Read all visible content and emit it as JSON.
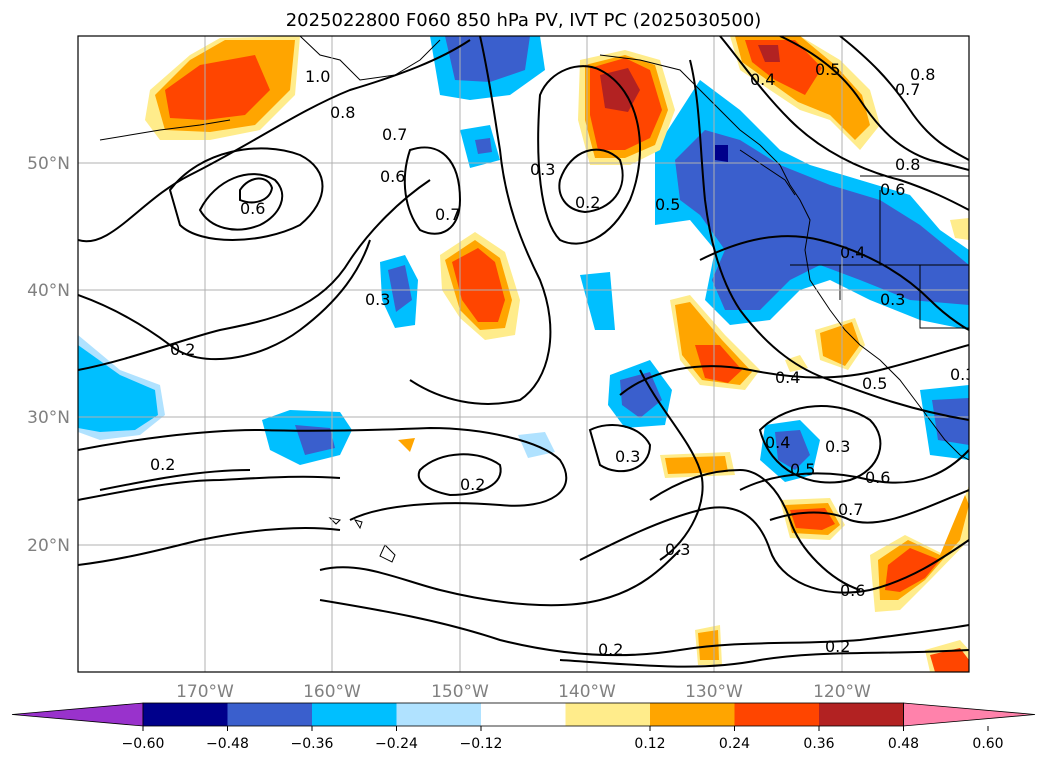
{
  "title": "2025022800 F060 850 hPa PV, IVT PC (2025030500)",
  "lat_labels": [
    "50°N",
    "40°N",
    "30°N",
    "20°N"
  ],
  "lon_labels": [
    "170°W",
    "160°W",
    "150°W",
    "140°W",
    "130°W",
    "120°W"
  ],
  "contour_labels": [
    "1.0",
    "0.8",
    "0.7",
    "0.6",
    "0.6",
    "0.7",
    "0.3",
    "0.3",
    "0.2",
    "0.5",
    "0.4",
    "0.6",
    "0.7",
    "0.8",
    "0.8",
    "0.5",
    "0.4",
    "0.3",
    "0.3",
    "0.2",
    "0.2",
    "0.3",
    "0.2",
    "0.4",
    "0.5",
    "0.4",
    "0.5",
    "0.3",
    "0.6",
    "0.7",
    "0.6",
    "0.2",
    "0.2",
    "0.3"
  ],
  "colorbar": {
    "ticks": [
      "−0.60",
      "−0.48",
      "−0.36",
      "−0.24",
      "−0.12",
      "0.12",
      "0.24",
      "0.36",
      "0.48",
      "0.60"
    ],
    "colors": [
      "#9932cc",
      "#00008b",
      "#3a5fcd",
      "#00bfff",
      "#b0e2ff",
      "#ffffff",
      "#ffec8b",
      "#ffa500",
      "#ff4500",
      "#b22222",
      "#ff82ab"
    ]
  }
}
